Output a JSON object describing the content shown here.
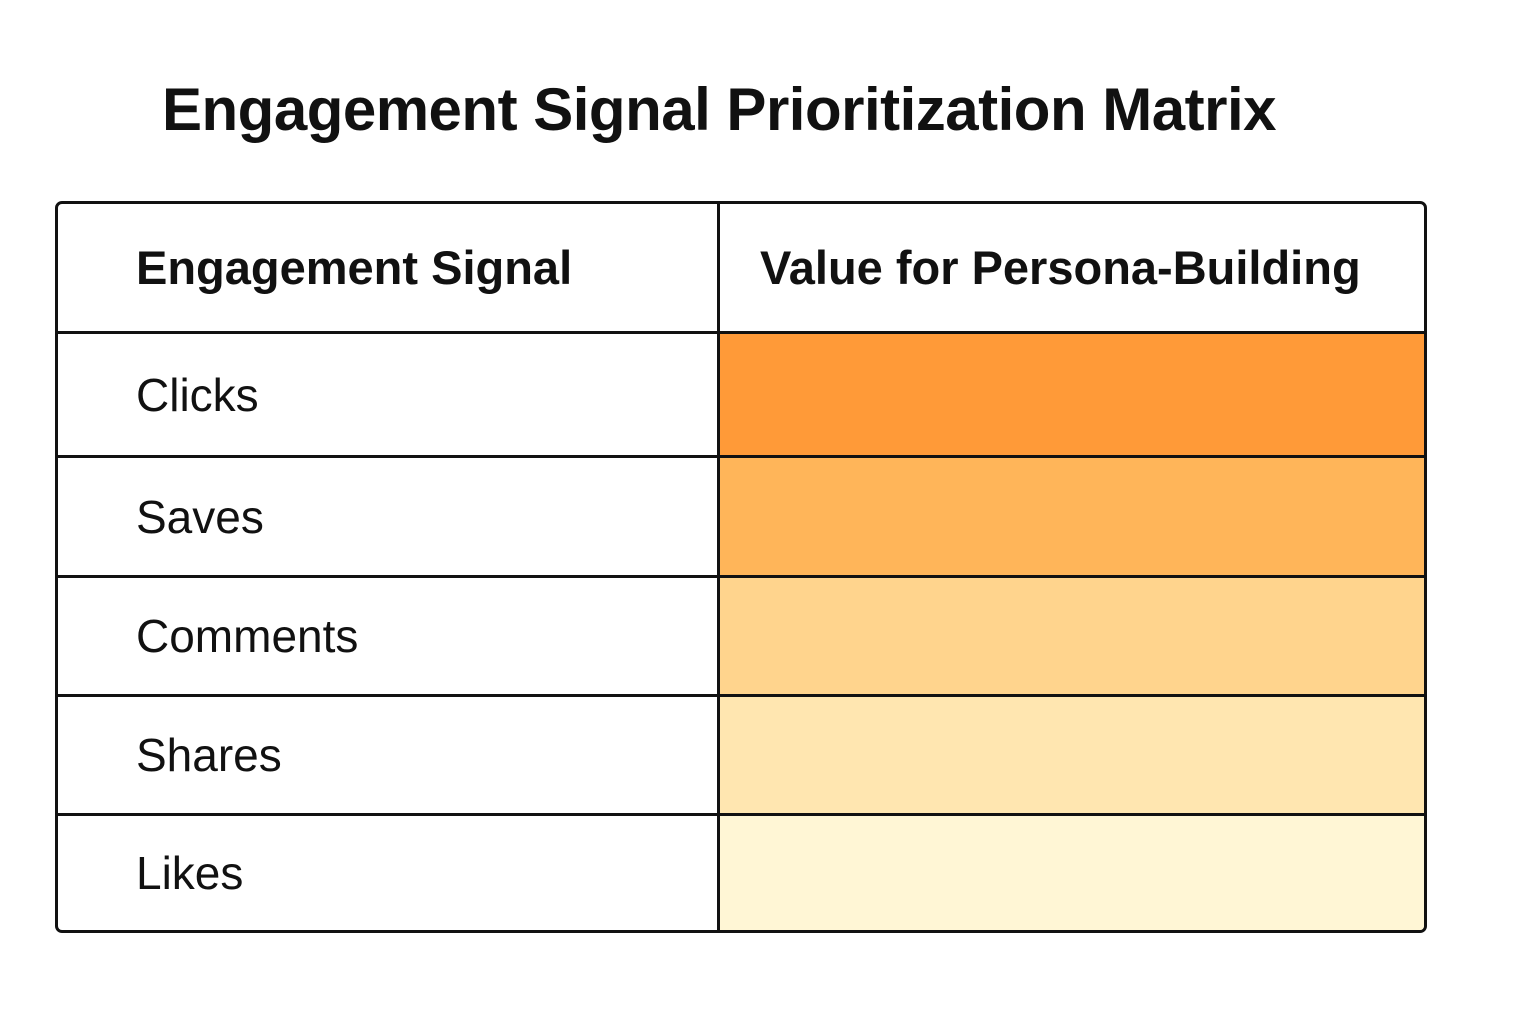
{
  "title": "Engagement Signal Prioritization Matrix",
  "chart_data": {
    "type": "table",
    "title": "Engagement Signal Prioritization Matrix",
    "columns": [
      "Engagement Signal",
      "Value for Persona-Building"
    ],
    "rows": [
      {
        "signal": "Clicks",
        "value_level": 1.0,
        "color": "#ff9a38"
      },
      {
        "signal": "Saves",
        "value_level": 0.8,
        "color": "#ffb559"
      },
      {
        "signal": "Comments",
        "value_level": 0.6,
        "color": "#ffd48d"
      },
      {
        "signal": "Shares",
        "value_level": 0.4,
        "color": "#ffe6b0"
      },
      {
        "signal": "Likes",
        "value_level": 0.2,
        "color": "#fff6d5"
      }
    ]
  }
}
